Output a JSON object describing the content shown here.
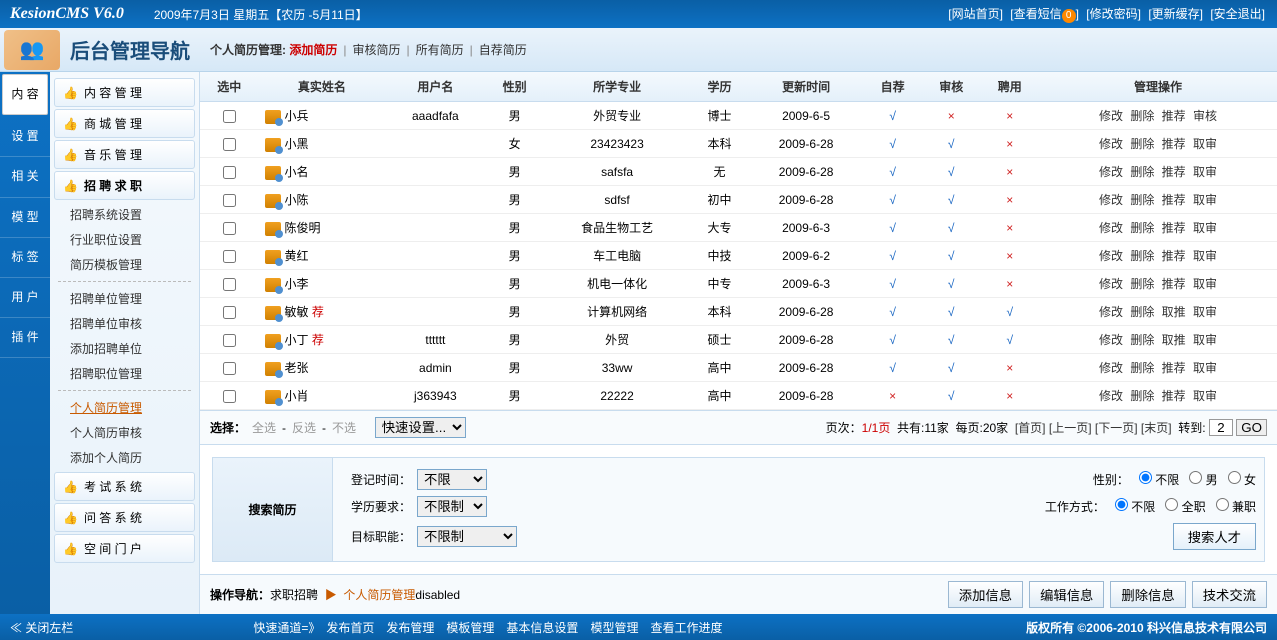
{
  "header": {
    "logo": "KesionCMS V6.0",
    "date": "2009年7月3日 星期五【农历 -5月11日】",
    "links": [
      "[网站首页]",
      "[查看短信",
      "]",
      "[修改密码]",
      "[更新缓存]",
      "[安全退出]"
    ],
    "msg_count": "0"
  },
  "subheader": {
    "title": "后台管理导航",
    "breadcrumb_prefix": "个人简历管理:",
    "breadcrumb": [
      "添加简历",
      "审核简历",
      "所有简历",
      "自荐简历"
    ],
    "breadcrumb_active_index": 0
  },
  "vtabs": [
    "内 容",
    "设 置",
    "相 关",
    "模 型",
    "标 签",
    "用 户",
    "插 件"
  ],
  "vtab_active": 0,
  "menu": {
    "items": [
      {
        "label": "内 容 管 理",
        "icon": "👍"
      },
      {
        "label": "商 城 管 理",
        "icon": "👍"
      },
      {
        "label": "音 乐 管 理",
        "icon": "👍"
      },
      {
        "label": "招 聘 求 职",
        "icon": "👍",
        "active": true,
        "subs": [
          {
            "label": "招聘系统设置"
          },
          {
            "label": "行业职位设置"
          },
          {
            "label": "简历模板管理"
          },
          {
            "sep": true
          },
          {
            "label": "招聘单位管理"
          },
          {
            "label": "招聘单位审核"
          },
          {
            "label": "添加招聘单位"
          },
          {
            "label": "招聘职位管理"
          },
          {
            "sep": true
          },
          {
            "label": "个人简历管理",
            "current": true
          },
          {
            "label": "个人简历审核"
          },
          {
            "label": "添加个人简历"
          }
        ]
      },
      {
        "label": "考 试 系 统",
        "icon": "👍"
      },
      {
        "label": "问 答 系 统",
        "icon": "👍"
      },
      {
        "label": "空 间 门 户",
        "icon": "👍"
      }
    ]
  },
  "table": {
    "columns": [
      "选中",
      "真实姓名",
      "用户名",
      "性别",
      "所学专业",
      "学历",
      "更新时间",
      "自荐",
      "审核",
      "聘用",
      "管理操作"
    ],
    "rows": [
      {
        "name": "小兵",
        "user": "aaadfafa",
        "sex": "男",
        "major": "外贸专业",
        "edu": "博士",
        "date": "2009-6-5",
        "rec": false,
        "self": true,
        "audit": false,
        "hire": false,
        "ops": [
          "修改",
          "删除",
          "推荐",
          "审核"
        ]
      },
      {
        "name": "小黑",
        "user": "",
        "sex": "女",
        "major": "23423423",
        "edu": "本科",
        "date": "2009-6-28",
        "rec": false,
        "self": true,
        "audit": true,
        "hire": false,
        "ops": [
          "修改",
          "删除",
          "推荐",
          "取审"
        ]
      },
      {
        "name": "小名",
        "user": "",
        "sex": "男",
        "major": "safsfa",
        "edu": "无",
        "date": "2009-6-28",
        "rec": false,
        "self": true,
        "audit": true,
        "hire": false,
        "ops": [
          "修改",
          "删除",
          "推荐",
          "取审"
        ]
      },
      {
        "name": "小陈",
        "user": "",
        "sex": "男",
        "major": "sdfsf",
        "edu": "初中",
        "date": "2009-6-28",
        "rec": false,
        "self": true,
        "audit": true,
        "hire": false,
        "ops": [
          "修改",
          "删除",
          "推荐",
          "取审"
        ]
      },
      {
        "name": "陈俊明",
        "user": "",
        "sex": "男",
        "major": "食品生物工艺",
        "edu": "大专",
        "date": "2009-6-3",
        "rec": false,
        "self": true,
        "audit": true,
        "hire": false,
        "ops": [
          "修改",
          "删除",
          "推荐",
          "取审"
        ]
      },
      {
        "name": "黄红",
        "user": "",
        "sex": "男",
        "major": "车工电脑",
        "edu": "中技",
        "date": "2009-6-2",
        "rec": false,
        "self": true,
        "audit": true,
        "hire": false,
        "ops": [
          "修改",
          "删除",
          "推荐",
          "取审"
        ]
      },
      {
        "name": "小李",
        "user": "",
        "sex": "男",
        "major": "机电一体化",
        "edu": "中专",
        "date": "2009-6-3",
        "rec": false,
        "self": true,
        "audit": true,
        "hire": false,
        "ops": [
          "修改",
          "删除",
          "推荐",
          "取审"
        ]
      },
      {
        "name": "敏敏",
        "user": "",
        "sex": "男",
        "major": "计算机网络",
        "edu": "本科",
        "date": "2009-6-28",
        "rec": true,
        "self": true,
        "audit": true,
        "hire": true,
        "ops": [
          "修改",
          "删除",
          "取推",
          "取审"
        ]
      },
      {
        "name": "小丁",
        "user": "tttttt",
        "sex": "男",
        "major": "外贸",
        "edu": "硕士",
        "date": "2009-6-28",
        "rec": true,
        "self": true,
        "audit": true,
        "hire": true,
        "ops": [
          "修改",
          "删除",
          "取推",
          "取审"
        ]
      },
      {
        "name": "老张",
        "user": "admin",
        "sex": "男",
        "major": "33ww",
        "edu": "高中",
        "date": "2009-6-28",
        "rec": false,
        "self": true,
        "audit": true,
        "hire": false,
        "ops": [
          "修改",
          "删除",
          "推荐",
          "取审"
        ]
      },
      {
        "name": "小肖",
        "user": "j363943",
        "sex": "男",
        "major": "22222",
        "edu": "高中",
        "date": "2009-6-28",
        "rec": false,
        "self": false,
        "audit": true,
        "hire": false,
        "ops": [
          "修改",
          "删除",
          "推荐",
          "取审"
        ]
      }
    ]
  },
  "selection": {
    "label": "选择：",
    "all": "全选",
    "inv": "反选",
    "none": "不选",
    "quick": "快速设置...",
    "pager_prefix": "页次：",
    "page": "1/1页",
    "total": "共有:11家",
    "perpage": "每页:20家",
    "nav": [
      "[首页]",
      "[上一页]",
      "[下一页]",
      "[末页]"
    ],
    "goto_label": "转到:",
    "goto_val": "2",
    "go": "GO"
  },
  "search": {
    "title": "搜索简历",
    "reg_time": "登记时间：",
    "reg_time_val": "不限",
    "edu_req": "学历要求：",
    "edu_req_val": "不限制",
    "target": "目标职能：",
    "target_val": "不限制",
    "sex_label": "性别：",
    "sex_opts": [
      "不限",
      "男",
      "女"
    ],
    "work_label": "工作方式：",
    "work_opts": [
      "不限",
      "全职",
      "兼职"
    ],
    "btn": "搜索人才"
  },
  "opnav": {
    "label": "操作导航：",
    "p1": "求职招聘",
    "arrow": "▶",
    "p2": "个人简历管理",
    "suffix": "disabled",
    "btns": [
      "添加信息",
      "编辑信息",
      "删除信息",
      "技术交流"
    ]
  },
  "bottom": {
    "close": "关闭左栏",
    "quick_label": "快速通道=》",
    "quick": [
      "发布首页",
      "发布管理",
      "模板管理",
      "基本信息设置",
      "模型管理",
      "查看工作进度"
    ],
    "copyright": "版权所有 ©2006-2010 科兴信息技术有限公司"
  }
}
